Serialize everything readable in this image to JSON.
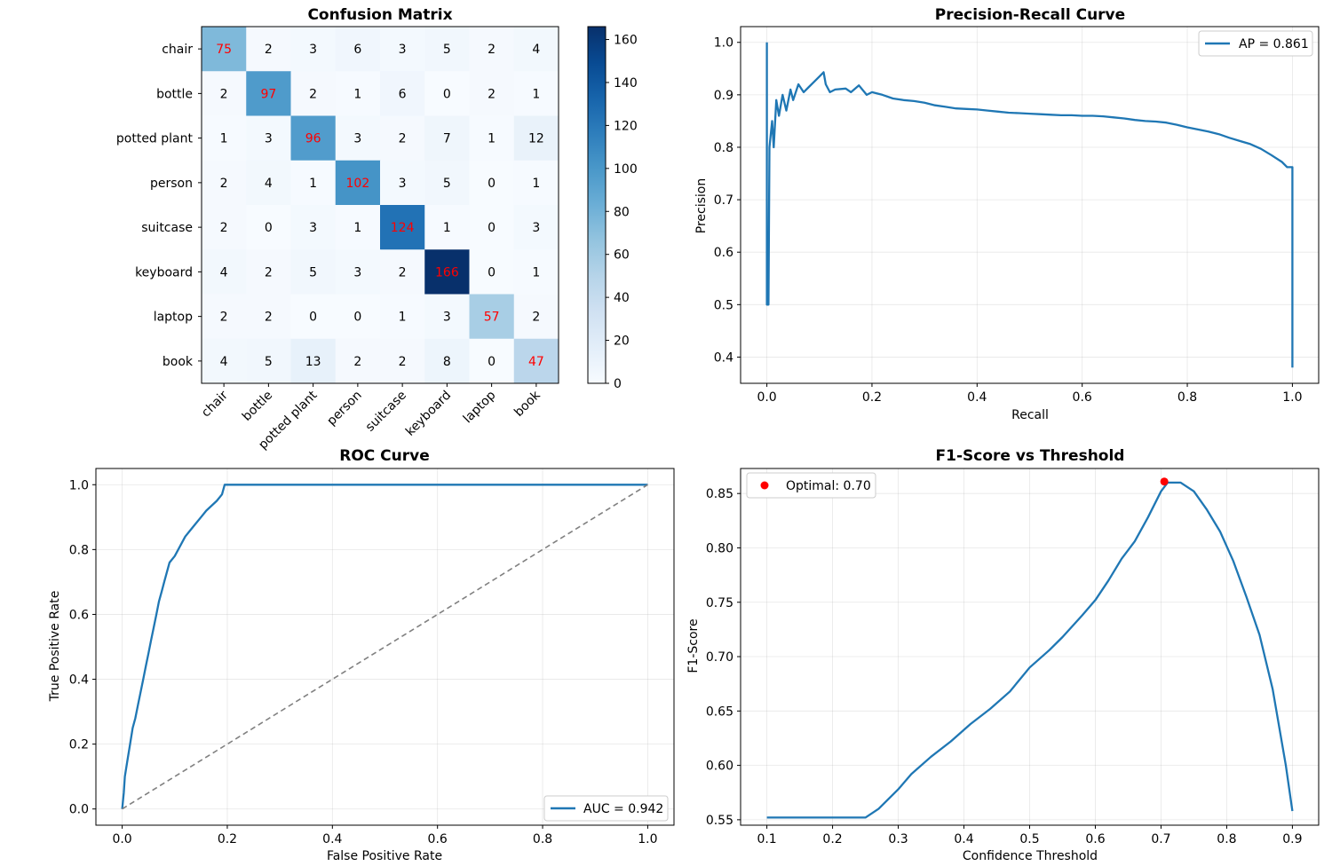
{
  "chart_data": [
    {
      "type": "heatmap",
      "title": "Confusion Matrix",
      "row_labels": [
        "chair",
        "bottle",
        "potted plant",
        "person",
        "suitcase",
        "keyboard",
        "laptop",
        "book"
      ],
      "col_labels": [
        "chair",
        "bottle",
        "potted plant",
        "person",
        "suitcase",
        "keyboard",
        "laptop",
        "book"
      ],
      "matrix": [
        [
          75,
          2,
          3,
          6,
          3,
          5,
          2,
          4
        ],
        [
          2,
          97,
          2,
          1,
          6,
          0,
          2,
          1
        ],
        [
          1,
          3,
          96,
          3,
          2,
          7,
          1,
          12
        ],
        [
          2,
          4,
          1,
          102,
          3,
          5,
          0,
          1
        ],
        [
          2,
          0,
          3,
          1,
          124,
          1,
          0,
          3
        ],
        [
          4,
          2,
          5,
          3,
          2,
          166,
          0,
          1
        ],
        [
          2,
          2,
          0,
          0,
          1,
          3,
          57,
          2
        ],
        [
          4,
          5,
          13,
          2,
          2,
          8,
          0,
          47
        ]
      ],
      "colorbar": {
        "min": 0,
        "max": 166,
        "ticks": [
          0,
          20,
          40,
          60,
          80,
          100,
          120,
          140,
          160
        ],
        "colormap": "Blues"
      },
      "highlight_color": "#ff0000"
    },
    {
      "type": "line",
      "title": "Precision-Recall Curve",
      "xlabel": "Recall",
      "ylabel": "Precision",
      "xlim": [
        -0.05,
        1.05
      ],
      "ylim": [
        0.35,
        1.03
      ],
      "xticks": [
        "0.0",
        "0.2",
        "0.4",
        "0.6",
        "0.8",
        "1.0"
      ],
      "yticks": [
        "0.4",
        "0.5",
        "0.6",
        "0.7",
        "0.8",
        "0.9",
        "1.0"
      ],
      "grid": true,
      "legend": "upper right",
      "series": [
        {
          "name": "AP = 0.861",
          "color": "#1f77b4",
          "points": [
            [
              0,
              1.0
            ],
            [
              0,
              0.5
            ],
            [
              0.003,
              0.5
            ],
            [
              0.005,
              0.8
            ],
            [
              0.01,
              0.85
            ],
            [
              0.013,
              0.8
            ],
            [
              0.018,
              0.89
            ],
            [
              0.023,
              0.86
            ],
            [
              0.03,
              0.9
            ],
            [
              0.037,
              0.87
            ],
            [
              0.045,
              0.91
            ],
            [
              0.05,
              0.89
            ],
            [
              0.06,
              0.92
            ],
            [
              0.07,
              0.905
            ],
            [
              0.08,
              0.915
            ],
            [
              0.09,
              0.925
            ],
            [
              0.1,
              0.935
            ],
            [
              0.108,
              0.943
            ],
            [
              0.112,
              0.92
            ],
            [
              0.12,
              0.905
            ],
            [
              0.13,
              0.91
            ],
            [
              0.15,
              0.912
            ],
            [
              0.16,
              0.905
            ],
            [
              0.175,
              0.918
            ],
            [
              0.19,
              0.9
            ],
            [
              0.2,
              0.905
            ],
            [
              0.22,
              0.9
            ],
            [
              0.24,
              0.893
            ],
            [
              0.26,
              0.89
            ],
            [
              0.28,
              0.888
            ],
            [
              0.3,
              0.885
            ],
            [
              0.32,
              0.88
            ],
            [
              0.34,
              0.877
            ],
            [
              0.36,
              0.874
            ],
            [
              0.38,
              0.873
            ],
            [
              0.4,
              0.872
            ],
            [
              0.42,
              0.87
            ],
            [
              0.44,
              0.868
            ],
            [
              0.46,
              0.866
            ],
            [
              0.48,
              0.865
            ],
            [
              0.5,
              0.864
            ],
            [
              0.52,
              0.863
            ],
            [
              0.54,
              0.862
            ],
            [
              0.56,
              0.861
            ],
            [
              0.58,
              0.861
            ],
            [
              0.6,
              0.86
            ],
            [
              0.62,
              0.86
            ],
            [
              0.64,
              0.859
            ],
            [
              0.66,
              0.857
            ],
            [
              0.68,
              0.855
            ],
            [
              0.7,
              0.852
            ],
            [
              0.72,
              0.85
            ],
            [
              0.74,
              0.849
            ],
            [
              0.76,
              0.847
            ],
            [
              0.78,
              0.843
            ],
            [
              0.8,
              0.838
            ],
            [
              0.82,
              0.834
            ],
            [
              0.84,
              0.83
            ],
            [
              0.86,
              0.825
            ],
            [
              0.88,
              0.818
            ],
            [
              0.9,
              0.812
            ],
            [
              0.92,
              0.806
            ],
            [
              0.94,
              0.797
            ],
            [
              0.96,
              0.785
            ],
            [
              0.98,
              0.772
            ],
            [
              0.99,
              0.762
            ],
            [
              1.0,
              0.762
            ],
            [
              1.0,
              0.38
            ]
          ]
        }
      ]
    },
    {
      "type": "line",
      "title": "ROC Curve",
      "xlabel": "False Positive Rate",
      "ylabel": "True Positive Rate",
      "xlim": [
        -0.05,
        1.05
      ],
      "ylim": [
        -0.05,
        1.05
      ],
      "xticks": [
        "0.0",
        "0.2",
        "0.4",
        "0.6",
        "0.8",
        "1.0"
      ],
      "yticks": [
        "0.0",
        "0.2",
        "0.4",
        "0.6",
        "0.8",
        "1.0"
      ],
      "grid": true,
      "legend": "lower right",
      "series": [
        {
          "name": "AUC = 0.942",
          "color": "#1f77b4",
          "points": [
            [
              0,
              0
            ],
            [
              0.003,
              0.05
            ],
            [
              0.005,
              0.1
            ],
            [
              0.01,
              0.15
            ],
            [
              0.015,
              0.2
            ],
            [
              0.02,
              0.25
            ],
            [
              0.025,
              0.28
            ],
            [
              0.03,
              0.32
            ],
            [
              0.035,
              0.36
            ],
            [
              0.04,
              0.4
            ],
            [
              0.045,
              0.44
            ],
            [
              0.05,
              0.48
            ],
            [
              0.055,
              0.52
            ],
            [
              0.06,
              0.56
            ],
            [
              0.065,
              0.6
            ],
            [
              0.07,
              0.64
            ],
            [
              0.075,
              0.67
            ],
            [
              0.08,
              0.7
            ],
            [
              0.085,
              0.73
            ],
            [
              0.09,
              0.76
            ],
            [
              0.1,
              0.78
            ],
            [
              0.11,
              0.81
            ],
            [
              0.12,
              0.84
            ],
            [
              0.13,
              0.86
            ],
            [
              0.14,
              0.88
            ],
            [
              0.15,
              0.9
            ],
            [
              0.16,
              0.92
            ],
            [
              0.17,
              0.935
            ],
            [
              0.18,
              0.95
            ],
            [
              0.19,
              0.97
            ],
            [
              0.195,
              1.0
            ],
            [
              1.0,
              1.0
            ]
          ]
        },
        {
          "name": "",
          "color": "#808080",
          "dashed": true,
          "points": [
            [
              0,
              0
            ],
            [
              1,
              1
            ]
          ]
        }
      ]
    },
    {
      "type": "line",
      "title": "F1-Score vs Threshold",
      "xlabel": "Confidence Threshold",
      "ylabel": "F1-Score",
      "xlim": [
        0.06,
        0.94
      ],
      "ylim": [
        0.545,
        0.873
      ],
      "xticks": [
        "0.1",
        "0.2",
        "0.3",
        "0.4",
        "0.5",
        "0.6",
        "0.7",
        "0.8",
        "0.9"
      ],
      "yticks": [
        "0.55",
        "0.60",
        "0.65",
        "0.70",
        "0.75",
        "0.80",
        "0.85"
      ],
      "grid": true,
      "legend": "upper left",
      "series": [
        {
          "name": "",
          "color": "#1f77b4",
          "points": [
            [
              0.1,
              0.552
            ],
            [
              0.15,
              0.552
            ],
            [
              0.2,
              0.552
            ],
            [
              0.25,
              0.552
            ],
            [
              0.27,
              0.56
            ],
            [
              0.3,
              0.578
            ],
            [
              0.32,
              0.592
            ],
            [
              0.35,
              0.608
            ],
            [
              0.38,
              0.622
            ],
            [
              0.41,
              0.638
            ],
            [
              0.44,
              0.652
            ],
            [
              0.47,
              0.668
            ],
            [
              0.5,
              0.69
            ],
            [
              0.53,
              0.706
            ],
            [
              0.55,
              0.718
            ],
            [
              0.58,
              0.738
            ],
            [
              0.6,
              0.752
            ],
            [
              0.62,
              0.77
            ],
            [
              0.64,
              0.79
            ],
            [
              0.66,
              0.806
            ],
            [
              0.68,
              0.828
            ],
            [
              0.7,
              0.852
            ],
            [
              0.71,
              0.86
            ],
            [
              0.73,
              0.86
            ],
            [
              0.75,
              0.852
            ],
            [
              0.77,
              0.835
            ],
            [
              0.79,
              0.815
            ],
            [
              0.81,
              0.788
            ],
            [
              0.83,
              0.755
            ],
            [
              0.85,
              0.72
            ],
            [
              0.87,
              0.67
            ],
            [
              0.89,
              0.6
            ],
            [
              0.9,
              0.558
            ]
          ]
        }
      ],
      "markers": [
        {
          "name": "Optimal: 0.70",
          "x": 0.705,
          "y": 0.861,
          "color": "#ff0000"
        }
      ]
    }
  ]
}
